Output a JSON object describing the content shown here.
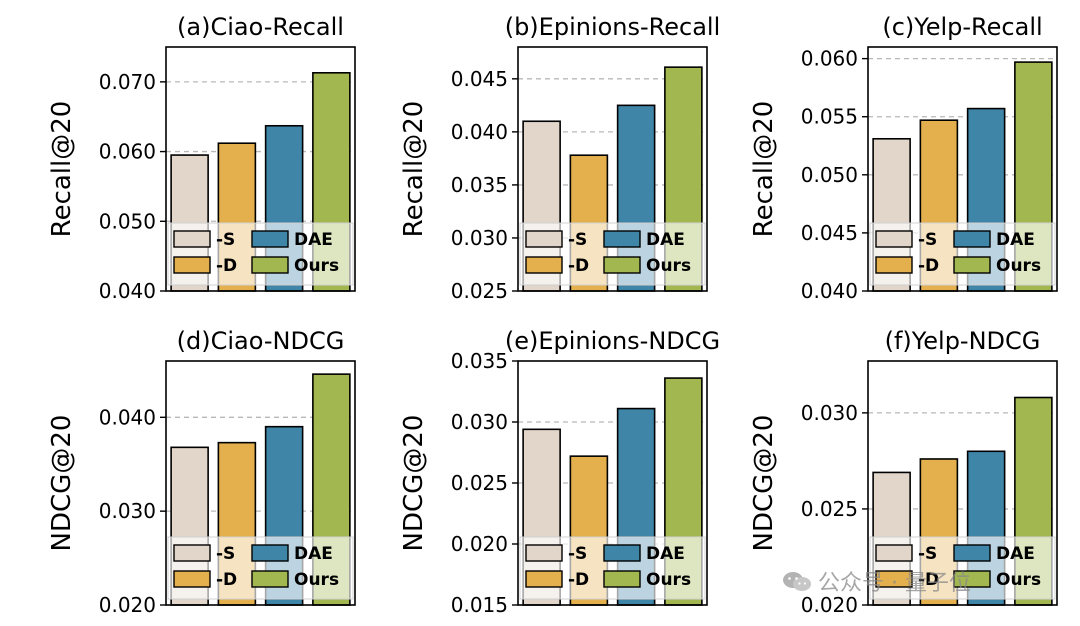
{
  "figure": {
    "colors": {
      "-S": "#e2d6ca",
      "-D": "#e4b04e",
      "DAE": "#3f85a8",
      "Ours": "#a2b74f"
    },
    "watermark": {
      "icon": "wechat-icon",
      "text": "公众号 · 量子位"
    }
  },
  "chart_data": [
    {
      "type": "bar",
      "title": "(a)Ciao-Recall",
      "xlabel": "",
      "ylabel": "Recall@20",
      "categories": [
        "-S",
        "-D",
        "DAE",
        "Ours"
      ],
      "values": [
        0.0595,
        0.0612,
        0.0637,
        0.0713
      ],
      "ylim": [
        0.04,
        0.075
      ],
      "yticks": [
        0.04,
        0.05,
        0.06,
        0.07
      ],
      "ytick_labels": [
        "0.040",
        "0.050",
        "0.060",
        "0.070"
      ],
      "grid": "horizontal dashed",
      "legend": {
        "position": "bottom",
        "entries": [
          "-S",
          "-D",
          "DAE",
          "Ours"
        ]
      }
    },
    {
      "type": "bar",
      "title": "(b)Epinions-Recall",
      "xlabel": "",
      "ylabel": "Recall@20",
      "categories": [
        "-S",
        "-D",
        "DAE",
        "Ours"
      ],
      "values": [
        0.041,
        0.0378,
        0.0425,
        0.0461
      ],
      "ylim": [
        0.025,
        0.048
      ],
      "yticks": [
        0.025,
        0.03,
        0.035,
        0.04,
        0.045
      ],
      "ytick_labels": [
        "0.025",
        "0.030",
        "0.035",
        "0.040",
        "0.045"
      ],
      "grid": "horizontal dashed",
      "legend": {
        "position": "bottom",
        "entries": [
          "-S",
          "-D",
          "DAE",
          "Ours"
        ]
      }
    },
    {
      "type": "bar",
      "title": "(c)Yelp-Recall",
      "xlabel": "",
      "ylabel": "Recall@20",
      "categories": [
        "-S",
        "-D",
        "DAE",
        "Ours"
      ],
      "values": [
        0.0531,
        0.0547,
        0.0557,
        0.0597
      ],
      "ylim": [
        0.04,
        0.061
      ],
      "yticks": [
        0.04,
        0.045,
        0.05,
        0.055,
        0.06
      ],
      "ytick_labels": [
        "0.040",
        "0.045",
        "0.050",
        "0.055",
        "0.060"
      ],
      "grid": "horizontal dashed",
      "legend": {
        "position": "bottom",
        "entries": [
          "-S",
          "-D",
          "DAE",
          "Ours"
        ]
      }
    },
    {
      "type": "bar",
      "title": "(d)Ciao-NDCG",
      "xlabel": "",
      "ylabel": "NDCG@20",
      "categories": [
        "-S",
        "-D",
        "DAE",
        "Ours"
      ],
      "values": [
        0.0368,
        0.0373,
        0.039,
        0.0446
      ],
      "ylim": [
        0.02,
        0.046
      ],
      "yticks": [
        0.02,
        0.03,
        0.04
      ],
      "ytick_labels": [
        "0.020",
        "0.030",
        "0.040"
      ],
      "grid": "horizontal dashed",
      "legend": {
        "position": "bottom",
        "entries": [
          "-S",
          "-D",
          "DAE",
          "Ours"
        ]
      }
    },
    {
      "type": "bar",
      "title": "(e)Epinions-NDCG",
      "xlabel": "",
      "ylabel": "NDCG@20",
      "categories": [
        "-S",
        "-D",
        "DAE",
        "Ours"
      ],
      "values": [
        0.0294,
        0.0272,
        0.0311,
        0.0336
      ],
      "ylim": [
        0.015,
        0.035
      ],
      "yticks": [
        0.015,
        0.02,
        0.025,
        0.03,
        0.035
      ],
      "ytick_labels": [
        "0.015",
        "0.020",
        "0.025",
        "0.030",
        "0.035"
      ],
      "grid": "horizontal dashed",
      "legend": {
        "position": "bottom",
        "entries": [
          "-S",
          "-D",
          "DAE",
          "Ours"
        ]
      }
    },
    {
      "type": "bar",
      "title": "(f)Yelp-NDCG",
      "xlabel": "",
      "ylabel": "NDCG@20",
      "categories": [
        "-S",
        "-D",
        "DAE",
        "Ours"
      ],
      "values": [
        0.0269,
        0.0276,
        0.028,
        0.0308
      ],
      "ylim": [
        0.02,
        0.0327
      ],
      "yticks": [
        0.02,
        0.025,
        0.03
      ],
      "ytick_labels": [
        "0.020",
        "0.025",
        "0.030"
      ],
      "grid": "horizontal dashed",
      "legend": {
        "position": "bottom",
        "entries": [
          "-S",
          "-D",
          "DAE",
          "Ours"
        ]
      }
    }
  ]
}
